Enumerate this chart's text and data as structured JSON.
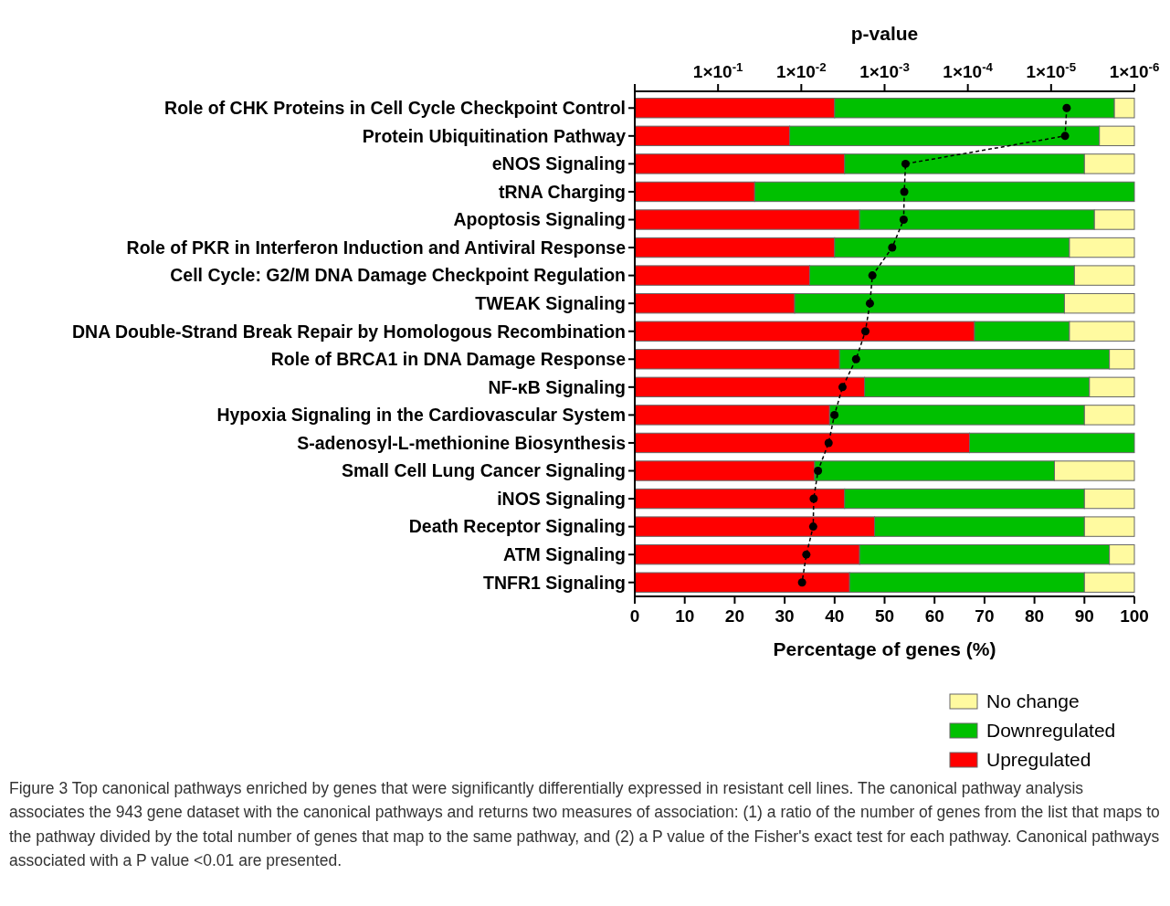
{
  "chart_data": {
    "type": "bar",
    "orientation": "horizontal",
    "stacked": true,
    "title": "p-value",
    "xlabel": "Percentage of genes (%)",
    "categories": [
      "Role of CHK Proteins in Cell Cycle Checkpoint Control",
      "Protein Ubiquitination Pathway",
      "eNOS Signaling",
      "tRNA Charging",
      "Apoptosis Signaling",
      "Role of PKR in Interferon Induction and Antiviral Response",
      "Cell Cycle: G2/M DNA Damage Checkpoint Regulation",
      "TWEAK Signaling",
      "DNA Double-Strand Break Repair by Homologous Recombination",
      "Role of BRCA1 in DNA Damage Response",
      "NF-κB Signaling",
      "Hypoxia Signaling in the Cardiovascular System",
      "S-adenosyl-L-methionine Biosynthesis",
      "Small Cell Lung Cancer Signaling",
      "iNOS Signaling",
      "Death Receptor Signaling",
      "ATM Signaling",
      "TNFR1 Signaling"
    ],
    "series": [
      {
        "name": "Upregulated",
        "color": "#ff0000",
        "values": [
          40,
          31,
          42,
          24,
          45,
          40,
          35,
          32,
          68,
          41,
          46,
          39,
          67,
          36,
          42,
          48,
          45,
          43
        ]
      },
      {
        "name": "Downregulated",
        "color": "#00c000",
        "values": [
          56,
          62,
          48,
          76,
          47,
          47,
          53,
          54,
          19,
          54,
          45,
          51,
          33,
          48,
          48,
          42,
          50,
          47
        ]
      },
      {
        "name": "No change",
        "color": "#fffaa0",
        "values": [
          4,
          7,
          10,
          0,
          8,
          13,
          12,
          14,
          13,
          5,
          9,
          10,
          0,
          16,
          10,
          10,
          5,
          10
        ]
      },
      {
        "type": "line",
        "axis": "x2",
        "color": "#000000",
        "marker": "circle",
        "line_style": "dashed",
        "values": [
          6.5e-06,
          6.8e-06,
          0.00056,
          0.00058,
          0.00059,
          0.00081,
          0.0014,
          0.0015,
          0.0017,
          0.0022,
          0.0032,
          0.004,
          0.0047,
          0.0063,
          0.0071,
          0.0072,
          0.0087,
          0.0098
        ]
      }
    ],
    "xlim": [
      0,
      100
    ],
    "xticks": [
      0,
      10,
      20,
      30,
      40,
      50,
      60,
      70,
      80,
      90,
      100
    ],
    "log": "x2",
    "x2lim": [
      1,
      1e-06
    ],
    "x2ticks": [
      {
        "value": 1,
        "label": null
      },
      {
        "value": 0.1,
        "label": "1×10$^{-1}$"
      },
      {
        "value": 0.01,
        "label": "1×10$^{-2}$"
      },
      {
        "value": 0.001,
        "label": "1×10$^{-3}$"
      },
      {
        "value": 0.0001,
        "label": "1×10$^{-4}$"
      },
      {
        "value": 1e-05,
        "label": "1×10$^{-5}$"
      },
      {
        "value": 1e-06,
        "label": "1×10$^{-6}$"
      }
    ],
    "legend": "bottom right",
    "grid": false,
    "annotations": [
      "Figure 3 Top canonical pathways enriched by genes that were significantly differentially expressed in resistant cell lines. The canonical pathway analysis associates the 943 gene dataset with the canonical pathways and returns two measures of association: (1) a ratio of the number of genes from the list that maps to the pathway divided by the total number of genes that map to the same pathway, and (2) a P value of the Fisher's exact test for each pathway. Canonical pathways associated with a P value <0.01 are presented."
    ]
  }
}
